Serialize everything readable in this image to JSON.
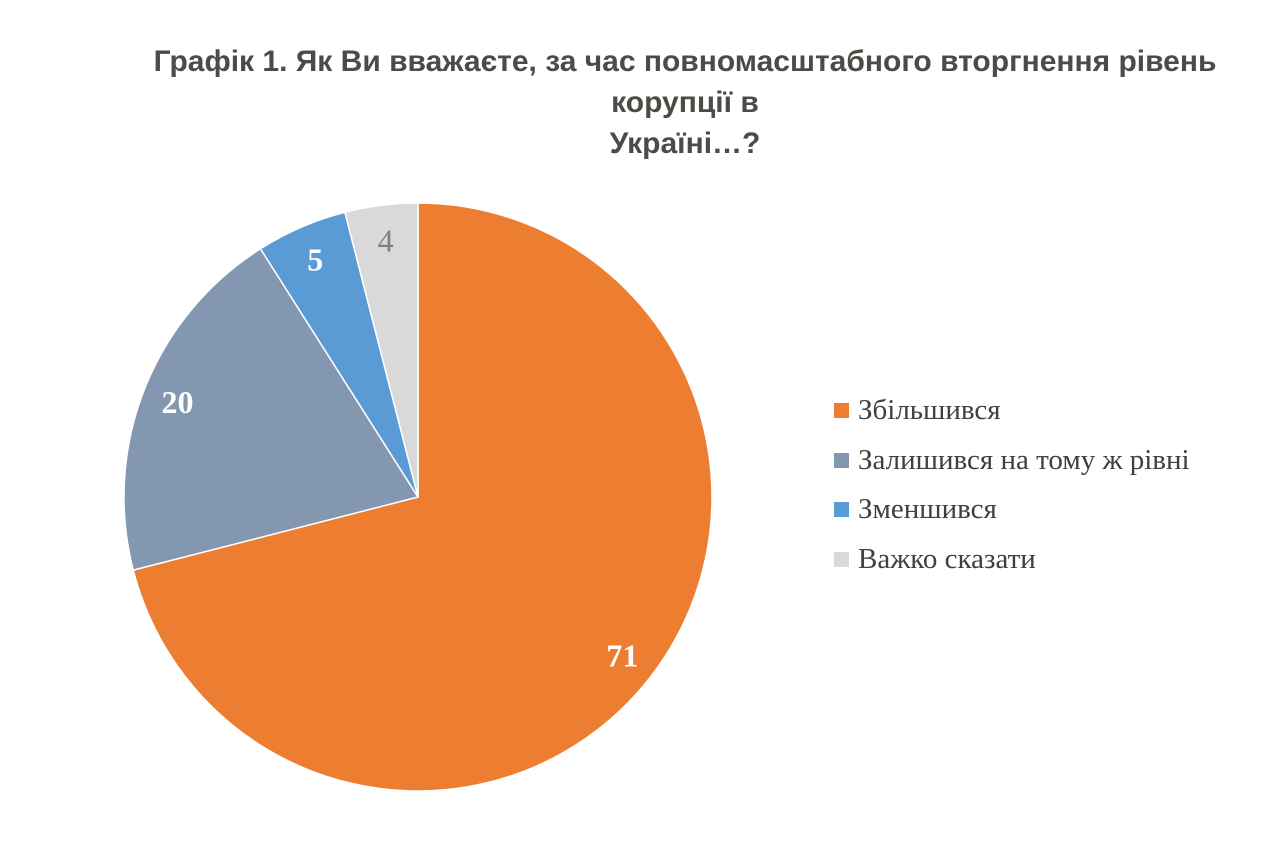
{
  "page": {
    "background_color": "#FFFFFF"
  },
  "title": {
    "text": "Графік 1. Як Ви вважаєте, за час повномасштабного вторгнення рівень корупції в Україні…?",
    "lines": [
      "Графік 1. Як Ви вважаєте, за час повномасштабного вторгнення рівень корупції в",
      "Україні…?"
    ],
    "color": "#4C4B46"
  },
  "chart_data": {
    "type": "pie",
    "title": "Графік 1. Як Ви вважаєте, за час повномасштабного вторгнення рівень корупції в Україні…?",
    "categories": [
      "Збільшився",
      "Залишився на тому ж рівні",
      "Зменшився",
      "Важко сказати"
    ],
    "values": [
      71,
      20,
      5,
      4
    ],
    "colors": [
      "#ED7D31",
      "#8497B0",
      "#5B9BD5",
      "#D9D9D9"
    ],
    "data_labels": [
      "71",
      "20",
      "5",
      "4"
    ],
    "data_label_colors": [
      "#FFFFFF",
      "#FFFFFF",
      "#FFFFFF",
      "#7F7F7F"
    ],
    "data_label_weights": [
      "bold",
      "bold",
      "bold",
      "normal"
    ],
    "start_angle_deg": 0,
    "direction": "clockwise",
    "units": "percent",
    "total": 100,
    "legend_position": "right",
    "grid": false
  },
  "legend": {
    "text_color": "#404040",
    "items": [
      {
        "label": "Збільшився",
        "color": "#ED7D31"
      },
      {
        "label": "Залишився на тому ж рівні",
        "color": "#8497B0"
      },
      {
        "label": "Зменшився",
        "color": "#5B9BD5"
      },
      {
        "label": "Важко сказати",
        "color": "#D9D9D9"
      }
    ]
  }
}
